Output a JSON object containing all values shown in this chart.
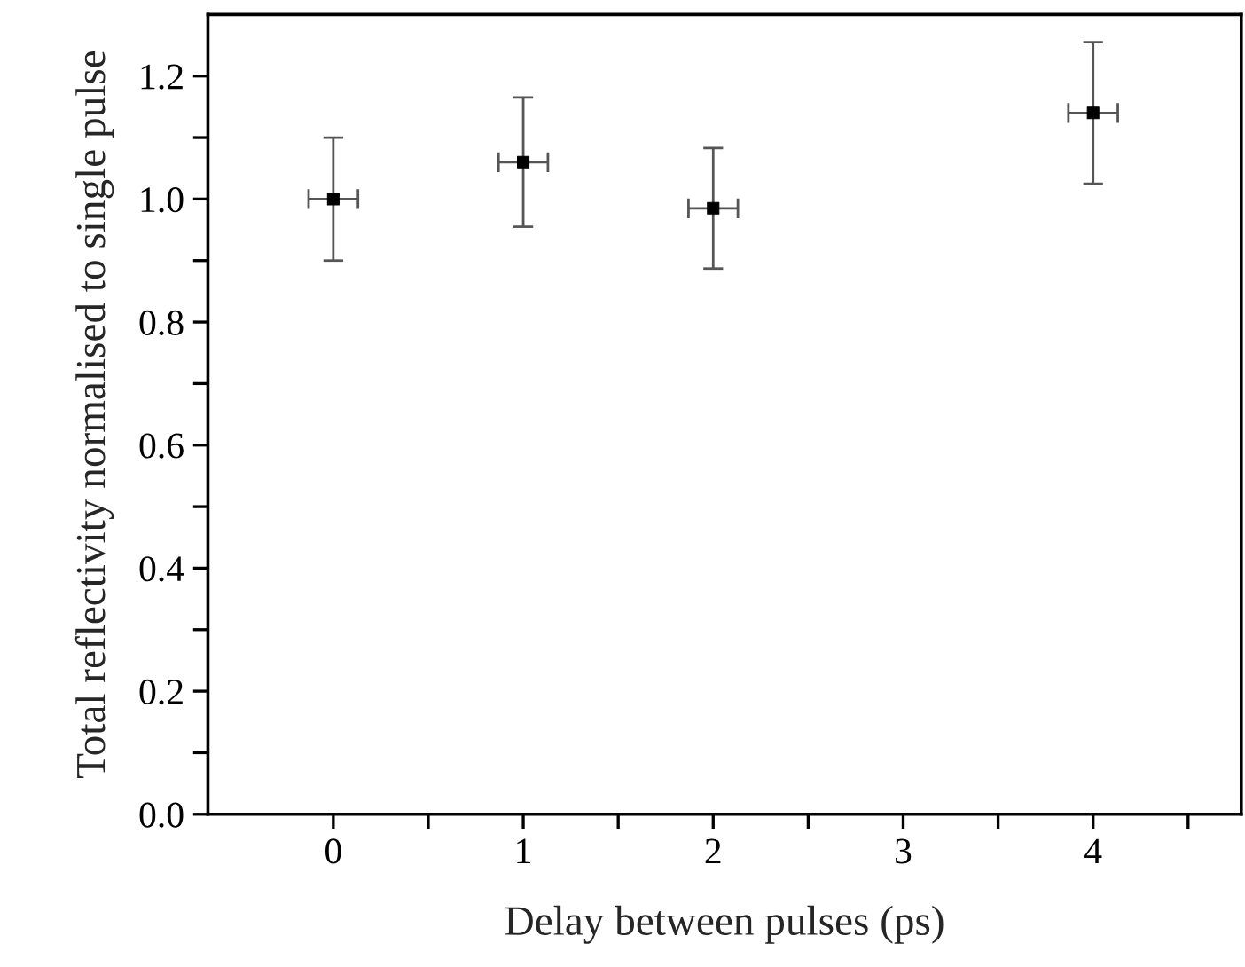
{
  "chart_data": {
    "type": "scatter",
    "xlabel": "Delay between pulses (ps)",
    "ylabel": "Total reflectivity normalised to single pulse",
    "x": [
      0,
      1,
      2,
      4
    ],
    "values": [
      1.0,
      1.06,
      0.985,
      1.14
    ],
    "errors": [
      0.1,
      0.105,
      0.098,
      0.115
    ],
    "xerrors": [
      0.13,
      0.13,
      0.13,
      0.13
    ],
    "color": "#000000",
    "marker": "square",
    "xlim": [
      -0.66,
      4.78
    ],
    "ylim": [
      0,
      1.3
    ],
    "xticks": [
      0,
      {
        "value": 0.5,
        "label": null
      },
      1,
      {
        "value": 1.5,
        "label": null
      },
      2,
      {
        "value": 2.5,
        "label": null
      },
      3,
      {
        "value": 3.5,
        "label": null
      },
      4,
      {
        "value": 4.5,
        "label": null
      }
    ],
    "yticks": [
      {
        "value": 0,
        "label": "0.0"
      },
      {
        "value": 0.1,
        "label": null
      },
      0.2,
      {
        "value": 0.3,
        "label": null
      },
      0.4,
      {
        "value": 0.5,
        "label": null
      },
      0.6,
      {
        "value": 0.7,
        "label": null
      },
      0.8,
      {
        "value": 0.9,
        "label": null
      },
      {
        "value": 1.0,
        "label": "1.0"
      },
      {
        "value": 1.1,
        "label": null
      },
      1.2
    ],
    "grid": false,
    "legend": false
  }
}
